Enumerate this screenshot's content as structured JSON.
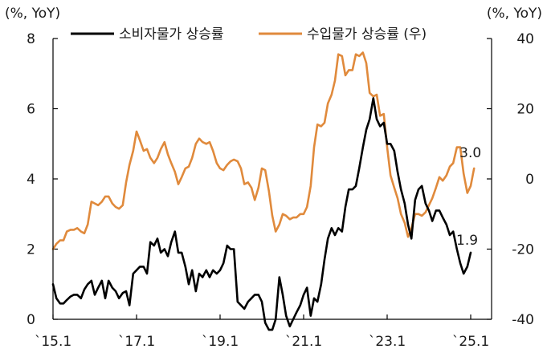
{
  "chart_data": {
    "type": "line",
    "left_axis_unit": "(%, YoY)",
    "right_axis_unit": "(%, YoY)",
    "left_ylim": [
      0,
      8
    ],
    "left_yticks": [
      "0",
      "2",
      "4",
      "6",
      "8"
    ],
    "right_ylim": [
      -40,
      40
    ],
    "right_yticks": [
      "-40",
      "-20",
      "0",
      "20",
      "40"
    ],
    "xlim": [
      2015.0,
      2025.5
    ],
    "x_ticks": [
      {
        "x": 2015.0,
        "label": "`15.1"
      },
      {
        "x": 2017.0,
        "label": "`17.1"
      },
      {
        "x": 2019.0,
        "label": "`19.1"
      },
      {
        "x": 2021.0,
        "label": "`21.1"
      },
      {
        "x": 2023.0,
        "label": "`23.1"
      },
      {
        "x": 2025.0,
        "label": "`25.1"
      }
    ],
    "series": [
      {
        "name": "소비자물가 상승률",
        "axis": "left",
        "color": "#000000",
        "end_label": "1.9",
        "points": [
          [
            2015.0,
            1.0
          ],
          [
            2015.08,
            0.6
          ],
          [
            2015.17,
            0.45
          ],
          [
            2015.25,
            0.45
          ],
          [
            2015.33,
            0.55
          ],
          [
            2015.42,
            0.65
          ],
          [
            2015.5,
            0.7
          ],
          [
            2015.58,
            0.7
          ],
          [
            2015.67,
            0.6
          ],
          [
            2015.75,
            0.85
          ],
          [
            2015.83,
            1.0
          ],
          [
            2015.92,
            1.1
          ],
          [
            2016.0,
            0.7
          ],
          [
            2016.08,
            0.9
          ],
          [
            2016.17,
            1.1
          ],
          [
            2016.25,
            0.6
          ],
          [
            2016.33,
            1.1
          ],
          [
            2016.42,
            0.9
          ],
          [
            2016.5,
            0.8
          ],
          [
            2016.58,
            0.6
          ],
          [
            2016.67,
            0.75
          ],
          [
            2016.75,
            0.8
          ],
          [
            2016.83,
            0.4
          ],
          [
            2016.92,
            1.3
          ],
          [
            2017.0,
            1.4
          ],
          [
            2017.08,
            1.5
          ],
          [
            2017.17,
            1.5
          ],
          [
            2017.25,
            1.3
          ],
          [
            2017.33,
            2.2
          ],
          [
            2017.42,
            2.1
          ],
          [
            2017.5,
            2.3
          ],
          [
            2017.58,
            1.9
          ],
          [
            2017.67,
            2.0
          ],
          [
            2017.75,
            1.8
          ],
          [
            2017.83,
            2.2
          ],
          [
            2017.92,
            2.5
          ],
          [
            2018.0,
            1.9
          ],
          [
            2018.08,
            1.9
          ],
          [
            2018.17,
            1.5
          ],
          [
            2018.25,
            1.0
          ],
          [
            2018.33,
            1.4
          ],
          [
            2018.42,
            0.8
          ],
          [
            2018.5,
            1.3
          ],
          [
            2018.58,
            1.2
          ],
          [
            2018.67,
            1.4
          ],
          [
            2018.75,
            1.2
          ],
          [
            2018.83,
            1.4
          ],
          [
            2018.92,
            1.3
          ],
          [
            2019.0,
            1.4
          ],
          [
            2019.08,
            1.6
          ],
          [
            2019.17,
            2.1
          ],
          [
            2019.25,
            2.0
          ],
          [
            2019.33,
            2.0
          ],
          [
            2019.42,
            0.5
          ],
          [
            2019.5,
            0.4
          ],
          [
            2019.58,
            0.3
          ],
          [
            2019.67,
            0.5
          ],
          [
            2019.75,
            0.6
          ],
          [
            2019.83,
            0.7
          ],
          [
            2019.92,
            0.7
          ],
          [
            2020.0,
            0.5
          ],
          [
            2020.08,
            -0.1
          ],
          [
            2020.17,
            -0.3
          ],
          [
            2020.25,
            -0.3
          ],
          [
            2020.33,
            0.0
          ],
          [
            2020.42,
            1.2
          ],
          [
            2020.5,
            0.7
          ],
          [
            2020.58,
            0.1
          ],
          [
            2020.67,
            -0.2
          ],
          [
            2020.75,
            0.0
          ],
          [
            2020.83,
            0.2
          ],
          [
            2020.92,
            0.4
          ],
          [
            2021.0,
            0.7
          ],
          [
            2021.08,
            0.9
          ],
          [
            2021.17,
            0.1
          ],
          [
            2021.25,
            0.6
          ],
          [
            2021.33,
            0.5
          ],
          [
            2021.42,
            1.0
          ],
          [
            2021.5,
            1.7
          ],
          [
            2021.58,
            2.3
          ],
          [
            2021.67,
            2.6
          ],
          [
            2021.75,
            2.4
          ],
          [
            2021.83,
            2.6
          ],
          [
            2021.92,
            2.5
          ],
          [
            2022.0,
            3.2
          ],
          [
            2022.08,
            3.7
          ],
          [
            2022.17,
            3.7
          ],
          [
            2022.25,
            3.8
          ],
          [
            2022.33,
            4.3
          ],
          [
            2022.42,
            4.9
          ],
          [
            2022.5,
            5.4
          ],
          [
            2022.58,
            5.7
          ],
          [
            2022.67,
            6.3
          ],
          [
            2022.75,
            5.7
          ],
          [
            2022.83,
            5.5
          ],
          [
            2022.92,
            5.6
          ],
          [
            2023.0,
            5.0
          ],
          [
            2023.08,
            5.0
          ],
          [
            2023.17,
            4.8
          ],
          [
            2023.25,
            4.2
          ],
          [
            2023.33,
            3.7
          ],
          [
            2023.42,
            3.3
          ],
          [
            2023.5,
            2.7
          ],
          [
            2023.58,
            2.3
          ],
          [
            2023.67,
            3.4
          ],
          [
            2023.75,
            3.7
          ],
          [
            2023.83,
            3.8
          ],
          [
            2023.92,
            3.3
          ],
          [
            2024.0,
            3.1
          ],
          [
            2024.08,
            2.8
          ],
          [
            2024.17,
            3.1
          ],
          [
            2024.25,
            3.1
          ],
          [
            2024.33,
            2.9
          ],
          [
            2024.42,
            2.7
          ],
          [
            2024.5,
            2.4
          ],
          [
            2024.58,
            2.5
          ],
          [
            2024.67,
            2.0
          ],
          [
            2024.75,
            1.6
          ],
          [
            2024.83,
            1.3
          ],
          [
            2024.92,
            1.5
          ],
          [
            2025.0,
            1.9
          ]
        ]
      },
      {
        "name": "수입물가 상승률 (우)",
        "axis": "right",
        "color": "#e08a3c",
        "end_label": "3.0",
        "points": [
          [
            2015.0,
            -20.0
          ],
          [
            2015.08,
            -18.5
          ],
          [
            2015.17,
            -17.5
          ],
          [
            2015.25,
            -17.5
          ],
          [
            2015.33,
            -15.0
          ],
          [
            2015.42,
            -14.5
          ],
          [
            2015.5,
            -14.5
          ],
          [
            2015.58,
            -14.0
          ],
          [
            2015.67,
            -15.0
          ],
          [
            2015.75,
            -15.5
          ],
          [
            2015.83,
            -13.0
          ],
          [
            2015.92,
            -6.5
          ],
          [
            2016.0,
            -7.0
          ],
          [
            2016.08,
            -7.5
          ],
          [
            2016.17,
            -6.5
          ],
          [
            2016.25,
            -5.0
          ],
          [
            2016.33,
            -5.0
          ],
          [
            2016.42,
            -7.0
          ],
          [
            2016.5,
            -8.0
          ],
          [
            2016.58,
            -8.5
          ],
          [
            2016.67,
            -7.5
          ],
          [
            2016.75,
            -1.0
          ],
          [
            2016.83,
            4.0
          ],
          [
            2016.92,
            8.0
          ],
          [
            2017.0,
            13.5
          ],
          [
            2017.08,
            11.0
          ],
          [
            2017.17,
            8.0
          ],
          [
            2017.25,
            8.5
          ],
          [
            2017.33,
            6.0
          ],
          [
            2017.42,
            4.5
          ],
          [
            2017.5,
            6.0
          ],
          [
            2017.58,
            8.5
          ],
          [
            2017.67,
            10.5
          ],
          [
            2017.75,
            7.0
          ],
          [
            2017.83,
            4.5
          ],
          [
            2017.92,
            2.0
          ],
          [
            2018.0,
            -1.5
          ],
          [
            2018.08,
            0.5
          ],
          [
            2018.17,
            3.0
          ],
          [
            2018.25,
            3.5
          ],
          [
            2018.33,
            6.0
          ],
          [
            2018.42,
            10.0
          ],
          [
            2018.5,
            11.5
          ],
          [
            2018.58,
            10.5
          ],
          [
            2018.67,
            10.0
          ],
          [
            2018.75,
            10.5
          ],
          [
            2018.83,
            8.0
          ],
          [
            2018.92,
            4.5
          ],
          [
            2019.0,
            3.0
          ],
          [
            2019.08,
            2.5
          ],
          [
            2019.17,
            4.0
          ],
          [
            2019.25,
            5.0
          ],
          [
            2019.33,
            5.5
          ],
          [
            2019.42,
            5.0
          ],
          [
            2019.5,
            3.0
          ],
          [
            2019.58,
            -1.5
          ],
          [
            2019.67,
            -1.0
          ],
          [
            2019.75,
            -2.5
          ],
          [
            2019.83,
            -6.0
          ],
          [
            2019.92,
            -2.5
          ],
          [
            2020.0,
            3.0
          ],
          [
            2020.08,
            2.5
          ],
          [
            2020.17,
            -3.5
          ],
          [
            2020.25,
            -10.5
          ],
          [
            2020.33,
            -15.0
          ],
          [
            2020.42,
            -13.0
          ],
          [
            2020.5,
            -10.0
          ],
          [
            2020.58,
            -10.5
          ],
          [
            2020.67,
            -11.5
          ],
          [
            2020.75,
            -11.0
          ],
          [
            2020.83,
            -11.0
          ],
          [
            2020.92,
            -10.0
          ],
          [
            2021.0,
            -10.0
          ],
          [
            2021.08,
            -8.0
          ],
          [
            2021.17,
            -2.0
          ],
          [
            2021.25,
            9.0
          ],
          [
            2021.33,
            15.5
          ],
          [
            2021.42,
            15.0
          ],
          [
            2021.5,
            16.0
          ],
          [
            2021.58,
            21.5
          ],
          [
            2021.67,
            24.0
          ],
          [
            2021.75,
            28.0
          ],
          [
            2021.83,
            35.5
          ],
          [
            2021.92,
            35.0
          ],
          [
            2022.0,
            29.5
          ],
          [
            2022.08,
            31.0
          ],
          [
            2022.17,
            31.0
          ],
          [
            2022.25,
            35.5
          ],
          [
            2022.33,
            35.0
          ],
          [
            2022.42,
            36.0
          ],
          [
            2022.5,
            33.0
          ],
          [
            2022.58,
            24.5
          ],
          [
            2022.67,
            23.5
          ],
          [
            2022.75,
            24.0
          ],
          [
            2022.83,
            18.0
          ],
          [
            2022.92,
            18.5
          ],
          [
            2023.0,
            9.0
          ],
          [
            2023.08,
            1.0
          ],
          [
            2023.17,
            -2.5
          ],
          [
            2023.25,
            -5.5
          ],
          [
            2023.33,
            -10.0
          ],
          [
            2023.42,
            -12.5
          ],
          [
            2023.5,
            -16.5
          ],
          [
            2023.58,
            -14.0
          ],
          [
            2023.67,
            -10.0
          ],
          [
            2023.75,
            -10.0
          ],
          [
            2023.83,
            -10.5
          ],
          [
            2023.92,
            -9.5
          ],
          [
            2024.0,
            -7.5
          ],
          [
            2024.08,
            -5.5
          ],
          [
            2024.17,
            -2.5
          ],
          [
            2024.25,
            0.5
          ],
          [
            2024.33,
            -0.5
          ],
          [
            2024.42,
            1.0
          ],
          [
            2024.5,
            3.5
          ],
          [
            2024.58,
            4.5
          ],
          [
            2024.67,
            9.0
          ],
          [
            2024.75,
            9.0
          ],
          [
            2024.83,
            1.5
          ],
          [
            2024.92,
            -4.0
          ],
          [
            2025.0,
            -2.0
          ],
          [
            2025.08,
            3.0
          ]
        ]
      }
    ]
  }
}
